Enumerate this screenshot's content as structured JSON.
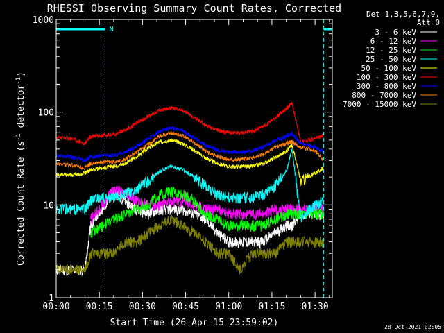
{
  "chart_data": {
    "type": "line",
    "title": "RHESSI Observing Summary Count Rates, Corrected",
    "xlabel": "Start Time (26-Apr-15 23:59:02)",
    "ylabel": "Corrected Count Rate (s",
    "ylabel_exp": "-1",
    "ylabel_mid": " detector",
    "ylabel_exp2": "-1",
    "ylabel_end": ")",
    "x_tick_labels": [
      "00:00",
      "00:15",
      "00:30",
      "00:45",
      "01:00",
      "01:15",
      "01:30"
    ],
    "x_tick_minutes": [
      0,
      15,
      30,
      45,
      60,
      75,
      90
    ],
    "xlim_minutes": [
      0,
      96
    ],
    "y_scale": "log",
    "ylim": [
      1,
      1000
    ],
    "y_tick_labels": [
      "1",
      "10",
      "100",
      "1000"
    ],
    "y_tick_values": [
      1,
      10,
      100,
      1000
    ],
    "legend_header": [
      "Det 1,3,5,6,7,9,",
      "Att 0"
    ],
    "legend_position": "right",
    "flag_label": "N",
    "flag_bars_minutes": [
      [
        0,
        17
      ],
      [
        93,
        105
      ]
    ],
    "night_lines_minutes": [
      17,
      93
    ],
    "saa_lines_minutes": [
      0,
      104
    ],
    "timestamp": "28-Oct-2021 02:05",
    "series": [
      {
        "name": "3 - 6 keV",
        "color": "#ffffff",
        "t": [
          0,
          5,
          10,
          12,
          16,
          20,
          24,
          28,
          32,
          36,
          40,
          44,
          48,
          52,
          56,
          60,
          64,
          68,
          72,
          76,
          80,
          82,
          85,
          90,
          93
        ],
        "v": [
          2,
          2,
          2,
          6,
          9,
          14,
          11,
          9,
          8,
          9,
          9,
          9,
          8,
          7,
          5,
          4,
          4,
          4,
          4,
          5,
          6,
          6,
          8,
          8,
          8
        ]
      },
      {
        "name": "6 - 12 keV",
        "color": "#ff00ff",
        "t": [
          0,
          5,
          10,
          12,
          16,
          20,
          24,
          28,
          32,
          36,
          40,
          44,
          48,
          52,
          56,
          60,
          64,
          68,
          72,
          76,
          80,
          82,
          85,
          90,
          93
        ],
        "v": [
          null,
          null,
          null,
          7,
          10,
          15,
          13,
          11,
          10,
          10,
          11,
          11,
          10,
          9,
          9,
          8,
          8,
          8,
          8,
          9,
          9,
          9,
          9,
          9,
          9
        ]
      },
      {
        "name": "12 - 25 keV",
        "color": "#00ff00",
        "t": [
          0,
          5,
          10,
          12,
          16,
          20,
          24,
          28,
          32,
          36,
          40,
          44,
          48,
          52,
          56,
          60,
          64,
          68,
          72,
          76,
          80,
          82,
          85,
          90,
          93
        ],
        "v": [
          null,
          null,
          null,
          5,
          6,
          7,
          8,
          9,
          10,
          13,
          14,
          13,
          11,
          8,
          7,
          6,
          6,
          6,
          6,
          7,
          8,
          8,
          8,
          8,
          8
        ]
      },
      {
        "name": "25 - 50 keV",
        "color": "#00ffff",
        "t": [
          0,
          5,
          10,
          12,
          16,
          20,
          24,
          28,
          32,
          36,
          40,
          44,
          48,
          52,
          56,
          60,
          64,
          68,
          72,
          76,
          80,
          82,
          85,
          90,
          93
        ],
        "v": [
          9,
          9,
          9,
          11,
          12,
          12,
          13,
          15,
          18,
          23,
          26,
          24,
          20,
          16,
          13,
          12,
          12,
          12,
          13,
          16,
          23,
          40,
          7,
          10,
          11
        ]
      },
      {
        "name": "50 - 100 keV",
        "color": "#ffff00",
        "t": [
          0,
          5,
          10,
          12,
          16,
          20,
          24,
          28,
          32,
          36,
          40,
          44,
          48,
          52,
          56,
          60,
          64,
          68,
          72,
          76,
          80,
          82,
          85,
          90,
          93
        ],
        "v": [
          21,
          21,
          22,
          24,
          25,
          26,
          28,
          33,
          41,
          48,
          50,
          46,
          39,
          32,
          28,
          26,
          26,
          26,
          28,
          32,
          38,
          45,
          18,
          22,
          25
        ]
      },
      {
        "name": "100 - 300 keV",
        "color": "#ff0000",
        "t": [
          0,
          5,
          10,
          12,
          16,
          20,
          24,
          28,
          32,
          36,
          40,
          44,
          48,
          52,
          56,
          60,
          64,
          68,
          72,
          76,
          80,
          82,
          85,
          90,
          93
        ],
        "v": [
          54,
          52,
          46,
          55,
          56,
          58,
          64,
          76,
          90,
          105,
          112,
          104,
          88,
          72,
          64,
          60,
          60,
          62,
          70,
          85,
          110,
          125,
          48,
          52,
          56
        ]
      },
      {
        "name": "300 - 800 keV",
        "color": "#0000ff",
        "t": [
          0,
          5,
          10,
          12,
          16,
          20,
          24,
          28,
          32,
          36,
          40,
          44,
          48,
          52,
          56,
          60,
          64,
          68,
          72,
          76,
          80,
          82,
          85,
          90,
          93
        ],
        "v": [
          34,
          33,
          30,
          33,
          34,
          34,
          37,
          43,
          52,
          62,
          68,
          63,
          53,
          44,
          39,
          37,
          37,
          38,
          42,
          49,
          55,
          58,
          46,
          42,
          37
        ]
      },
      {
        "name": "800 - 7000 keV",
        "color": "#ff8000",
        "t": [
          0,
          5,
          10,
          12,
          16,
          20,
          24,
          28,
          32,
          36,
          40,
          44,
          48,
          52,
          56,
          60,
          64,
          68,
          72,
          76,
          80,
          82,
          85,
          90,
          93
        ],
        "v": [
          28,
          27,
          25,
          28,
          29,
          29,
          31,
          37,
          45,
          55,
          60,
          56,
          47,
          38,
          33,
          31,
          31,
          32,
          35,
          41,
          46,
          48,
          42,
          38,
          31
        ]
      },
      {
        "name": "7000 - 15000 keV",
        "color": "#808000",
        "t": [
          0,
          5,
          10,
          12,
          16,
          20,
          24,
          28,
          32,
          36,
          40,
          44,
          48,
          52,
          56,
          60,
          64,
          68,
          72,
          76,
          80,
          82,
          85,
          90,
          93
        ],
        "v": [
          2,
          2,
          2,
          3,
          3,
          3,
          4,
          4,
          5,
          6,
          7,
          6,
          5,
          4,
          3,
          3,
          2,
          3,
          3,
          3,
          4,
          4,
          4,
          4,
          4
        ]
      }
    ]
  }
}
